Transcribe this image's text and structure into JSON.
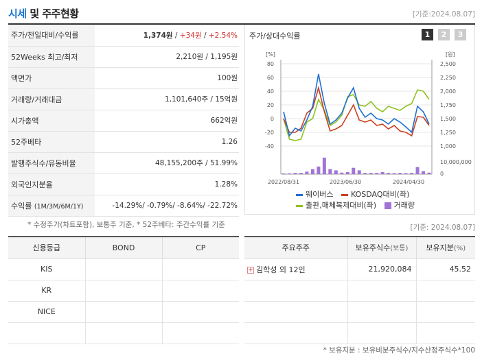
{
  "header": {
    "title_a": "시세",
    "title_b": " 및 주주현황",
    "date": "[기준:2024.08.07]"
  },
  "price_table": {
    "rows": [
      {
        "label": "주가/전일대비/수익률",
        "price": "1,374원",
        "sep1": " / ",
        "change": "+34원",
        "sep2": " / ",
        "rate": "+2.54%"
      },
      {
        "label": "52Weeks 최고/최저",
        "value": "2,210원 / 1,195원"
      },
      {
        "label": "액면가",
        "value": "100원"
      },
      {
        "label": "거래량/거래대금",
        "value": "1,101,640주 / 15억원"
      },
      {
        "label": "시가총액",
        "value": "662억원"
      },
      {
        "label": "52주베타",
        "value": "1.26"
      },
      {
        "label": "발행주식수/유동비율",
        "value": "48,155,200주 / 51.99%"
      },
      {
        "label": "외국인지분율",
        "value": "1.28%"
      },
      {
        "label": "수익률",
        "label_small": "(1M/3M/6M/1Y)",
        "value": "-14.29%/ -0.79%/ -8.64%/ -22.72%"
      }
    ]
  },
  "note1": "* 수정주가(차트포함), 보통주 기준, * 52주베타: 주간수익률 기준",
  "chart_panel": {
    "title": "주가/상대수익률",
    "tabs": [
      "1",
      "2",
      "3"
    ],
    "active_tab": 0
  },
  "chart_data": {
    "type": "line",
    "left_axis_unit": "[%]",
    "right_axis_unit": "[원]",
    "left_ticks": [
      "80",
      "60",
      "40",
      "20",
      "0",
      "-20",
      "-40"
    ],
    "left_ylim": [
      -40,
      80
    ],
    "right_ticks": [
      "2,500",
      "2,250",
      "2,000",
      "1,750",
      "1,500",
      "1,250",
      "1,000"
    ],
    "right_ylim": [
      1000,
      2500
    ],
    "volume_tick": "10,000,000",
    "volume_zero": "0",
    "x_ticks": [
      "2022/08/31",
      "2023/06/30",
      "2024/04/30"
    ],
    "colors": {
      "wave": "#1f6fd0",
      "kosdaq": "#c9401f",
      "industry": "#8fc21f",
      "volume": "#a175d8"
    },
    "series": [
      {
        "name": "웨이버스",
        "values": [
          10,
          -25,
          -14,
          -18,
          -2,
          18,
          65,
          22,
          -8,
          -2,
          8,
          30,
          45,
          15,
          2,
          8,
          0,
          -2,
          -8,
          0,
          -5,
          -12,
          -20,
          18,
          10,
          -8
        ]
      },
      {
        "name": "KOSDAQ대비(좌)",
        "values": [
          0,
          -20,
          -20,
          -14,
          8,
          15,
          45,
          10,
          -18,
          -15,
          -10,
          5,
          20,
          -2,
          -5,
          -2,
          -10,
          -8,
          -15,
          -10,
          -18,
          -20,
          -25,
          3,
          2,
          -10
        ]
      },
      {
        "name": "출판,매체복제대비(좌)",
        "values": [
          0,
          -30,
          -32,
          -30,
          -5,
          0,
          28,
          12,
          -10,
          -5,
          5,
          32,
          35,
          20,
          18,
          25,
          15,
          10,
          18,
          15,
          12,
          18,
          22,
          42,
          40,
          28
        ]
      },
      {
        "name": "거래량",
        "values": [
          0.3,
          0.3,
          0.5,
          0.5,
          1.0,
          2.0,
          3.0,
          6.5,
          2.0,
          1.5,
          0.6,
          0.8,
          2.5,
          1.5,
          0.5,
          0.5,
          0.5,
          0.8,
          0.5,
          0.4,
          0.5,
          0.4,
          0.5,
          2.8,
          1.2,
          0.6
        ]
      }
    ]
  },
  "legend": {
    "items": [
      "웨이버스",
      "KOSDAQ대비(좌)",
      "출판,매체복제대비(좌)",
      "거래량"
    ]
  },
  "date2": "[기준: 2024.08.07]",
  "credit_table": {
    "headers": [
      "신용등급",
      "BOND",
      "CP"
    ],
    "rows": [
      {
        "agency": "KIS",
        "bond": "",
        "cp": ""
      },
      {
        "agency": "KR",
        "bond": "",
        "cp": ""
      },
      {
        "agency": "NICE",
        "bond": "",
        "cp": ""
      },
      {
        "agency": "",
        "bond": "",
        "cp": ""
      }
    ]
  },
  "holders_table": {
    "headers": [
      "주요주주",
      "보유주식수",
      "(보통)",
      "보유지분",
      "(%)"
    ],
    "rows": [
      {
        "name": "김학성 외 12인",
        "shares": "21,920,084",
        "pct": "45.52"
      },
      {
        "name": "",
        "shares": "",
        "pct": ""
      },
      {
        "name": "",
        "shares": "",
        "pct": ""
      },
      {
        "name": "",
        "shares": "",
        "pct": ""
      }
    ]
  },
  "note2": "* 보유지분 : 보유비분주식수/지수산정주식수*100"
}
